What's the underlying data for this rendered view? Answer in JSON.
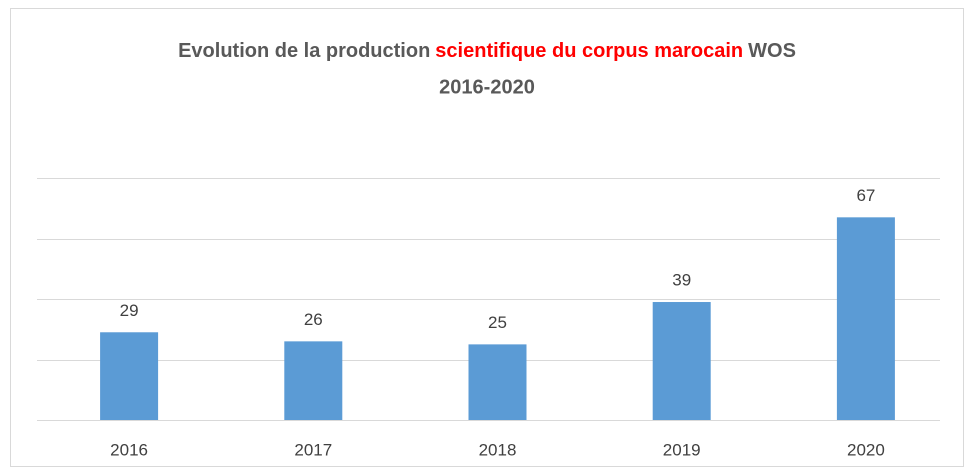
{
  "chart_data": {
    "type": "bar",
    "title": [
      "Evolution de la production",
      "scientifique du corpus marocain",
      "WOS",
      "2016-2020"
    ],
    "categories": [
      "2016",
      "2017",
      "2018",
      "2019",
      "2020"
    ],
    "values": [
      29,
      26,
      25,
      39,
      67
    ],
    "color": "#5b9bd5",
    "ylim": [
      0,
      80
    ],
    "yticks": [
      0,
      20,
      40,
      60,
      80
    ],
    "grid": true
  }
}
